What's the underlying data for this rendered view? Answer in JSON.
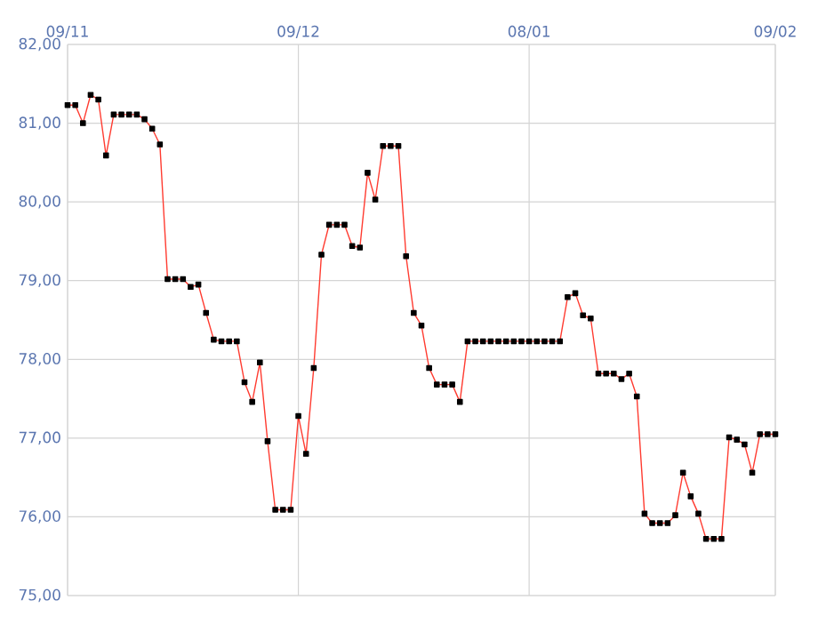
{
  "chart_data": {
    "type": "line",
    "categories": [
      "09/11",
      null,
      null,
      null,
      null,
      null,
      null,
      null,
      null,
      null,
      null,
      null,
      null,
      null,
      null,
      null,
      null,
      null,
      null,
      null,
      null,
      null,
      null,
      null,
      null,
      null,
      null,
      null,
      null,
      null,
      "09/12",
      null,
      null,
      null,
      null,
      null,
      null,
      null,
      null,
      null,
      null,
      null,
      null,
      null,
      null,
      null,
      null,
      null,
      null,
      null,
      null,
      null,
      null,
      null,
      null,
      null,
      null,
      null,
      null,
      null,
      "08/01",
      null,
      null,
      null,
      null,
      null,
      null,
      null,
      null,
      null,
      null,
      null,
      null,
      null,
      null,
      null,
      null,
      null,
      null,
      null,
      null,
      null,
      null,
      null,
      null,
      null,
      null,
      null,
      null,
      null,
      null,
      null,
      "09/02"
    ],
    "series": [
      {
        "color": "#ff3b30",
        "values": [
          81.23,
          81.23,
          81.0,
          81.36,
          81.3,
          80.59,
          81.11,
          81.11,
          81.11,
          81.11,
          81.05,
          80.93,
          80.73,
          79.02,
          79.02,
          79.02,
          78.92,
          78.95,
          78.59,
          78.25,
          78.23,
          78.23,
          78.23,
          77.71,
          77.46,
          77.96,
          76.96,
          76.09,
          76.09,
          76.09,
          77.28,
          76.8,
          77.89,
          79.33,
          79.71,
          79.71,
          79.71,
          79.44,
          79.42,
          80.37,
          80.03,
          80.71,
          80.71,
          80.71,
          79.31,
          78.59,
          78.43,
          77.89,
          77.68,
          77.68,
          77.68,
          77.46,
          78.23,
          78.23,
          78.23,
          78.23,
          78.23,
          78.23,
          78.23,
          78.23,
          78.23,
          78.23,
          78.23,
          78.23,
          78.23,
          78.79,
          78.84,
          78.56,
          78.52,
          77.82,
          77.82,
          77.82,
          77.75,
          77.82,
          77.53,
          76.04,
          75.92,
          75.92,
          75.92,
          76.02,
          76.56,
          76.26,
          76.04,
          75.72,
          75.72,
          75.72,
          77.01,
          76.98,
          76.92,
          76.56,
          77.05,
          77.05,
          77.05
        ]
      }
    ],
    "ylim": [
      75,
      82
    ],
    "yticks": [
      {
        "value": 75,
        "label": "75,00"
      },
      {
        "value": 76,
        "label": "76,00"
      },
      {
        "value": 77,
        "label": "77,00"
      },
      {
        "value": 78,
        "label": "78,00"
      },
      {
        "value": 79,
        "label": "79,00"
      },
      {
        "value": 80,
        "label": "80,00"
      },
      {
        "value": 81,
        "label": "81,00"
      },
      {
        "value": 82,
        "label": "82,00"
      }
    ],
    "grid": true,
    "marker": "square",
    "line_style": "solid"
  }
}
